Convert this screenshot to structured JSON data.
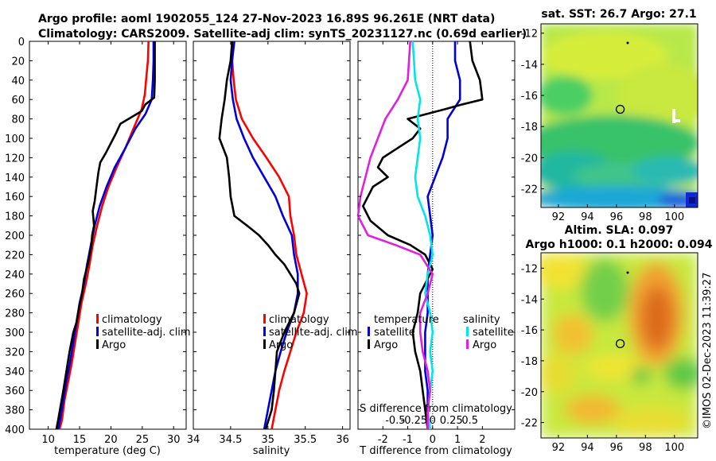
{
  "header": {
    "title_line1": "Argo profile: aoml 1902055_124 27-Nov-2023 16.89S 96.261E (NRT data)",
    "title_line2": "Climatology: CARS2009. Satellite-adj clim: synTS_20231127.nc (0.69d earlier)"
  },
  "footer": {
    "credit": "©IMOS 02-Dec-2023 11:39:27"
  },
  "colors": {
    "climatology": "#ff0000",
    "satellite": "#0000dd",
    "argo": "#000000",
    "sal_satellite": "#00e5e5",
    "sal_argo": "#e020e0"
  },
  "chart_data": [
    {
      "id": "temperature",
      "type": "line",
      "xlabel": "temperature (deg C)",
      "ylabel": "",
      "xlim": [
        7,
        32
      ],
      "ylim": [
        400,
        0
      ],
      "xticks": [
        10,
        15,
        20,
        25,
        30
      ],
      "yticks": [
        0,
        20,
        40,
        60,
        80,
        100,
        120,
        140,
        160,
        180,
        200,
        220,
        240,
        260,
        280,
        300,
        320,
        340,
        360,
        380,
        400
      ],
      "legend": [
        "climatology",
        "satellite-adj. clim",
        "Argo"
      ],
      "series": [
        {
          "name": "climatology",
          "color": "#ff0000",
          "points": [
            [
              26.0,
              0
            ],
            [
              25.9,
              20
            ],
            [
              25.6,
              40
            ],
            [
              25.4,
              55
            ],
            [
              24.9,
              70
            ],
            [
              23.6,
              90
            ],
            [
              22.3,
              110
            ],
            [
              20.9,
              130
            ],
            [
              19.6,
              150
            ],
            [
              18.6,
              170
            ],
            [
              17.8,
              190
            ],
            [
              17.1,
              210
            ],
            [
              16.6,
              230
            ],
            [
              16.0,
              250
            ],
            [
              15.3,
              270
            ],
            [
              14.8,
              290
            ],
            [
              14.3,
              310
            ],
            [
              13.8,
              330
            ],
            [
              13.2,
              350
            ],
            [
              12.6,
              370
            ],
            [
              12.2,
              390
            ],
            [
              11.8,
              400
            ]
          ]
        },
        {
          "name": "satellite-adj. clim",
          "color": "#0000dd",
          "points": [
            [
              26.8,
              0
            ],
            [
              26.8,
              20
            ],
            [
              26.7,
              40
            ],
            [
              26.5,
              60
            ],
            [
              25.5,
              75
            ],
            [
              23.9,
              90
            ],
            [
              22.3,
              110
            ],
            [
              20.6,
              130
            ],
            [
              19.3,
              150
            ],
            [
              18.2,
              170
            ],
            [
              17.4,
              190
            ],
            [
              16.8,
              210
            ],
            [
              16.2,
              230
            ],
            [
              15.7,
              250
            ],
            [
              15.0,
              270
            ],
            [
              14.5,
              290
            ],
            [
              14.0,
              310
            ],
            [
              13.5,
              330
            ],
            [
              12.9,
              350
            ],
            [
              12.4,
              370
            ],
            [
              11.9,
              390
            ],
            [
              11.6,
              400
            ]
          ]
        },
        {
          "name": "Argo",
          "color": "#000000",
          "points": [
            [
              27.0,
              0
            ],
            [
              27.0,
              20
            ],
            [
              27.0,
              40
            ],
            [
              26.9,
              58
            ],
            [
              25.5,
              65
            ],
            [
              24.9,
              72
            ],
            [
              21.5,
              85
            ],
            [
              20.8,
              95
            ],
            [
              20.0,
              105
            ],
            [
              19.2,
              115
            ],
            [
              18.3,
              125
            ],
            [
              18.0,
              135
            ],
            [
              17.7,
              150
            ],
            [
              17.4,
              165
            ],
            [
              17.1,
              175
            ],
            [
              17.3,
              190
            ],
            [
              17.0,
              200
            ],
            [
              16.9,
              210
            ],
            [
              16.3,
              230
            ],
            [
              15.7,
              245
            ],
            [
              15.4,
              260
            ],
            [
              14.9,
              275
            ],
            [
              14.5,
              290
            ],
            [
              14.0,
              300
            ],
            [
              13.4,
              320
            ],
            [
              12.9,
              340
            ],
            [
              12.4,
              360
            ],
            [
              12.0,
              375
            ],
            [
              11.6,
              390
            ],
            [
              11.3,
              400
            ]
          ]
        }
      ]
    },
    {
      "id": "salinity",
      "type": "line",
      "xlabel": "salinity",
      "ylabel": "",
      "xlim": [
        34.0,
        36.1
      ],
      "ylim": [
        400,
        0
      ],
      "xticks": [
        34,
        34.5,
        35,
        35.5,
        36
      ],
      "legend": [
        "climatology",
        "satellite-adj. clim",
        "Argo"
      ],
      "series": [
        {
          "name": "climatology",
          "color": "#ff0000",
          "points": [
            [
              34.52,
              0
            ],
            [
              34.52,
              20
            ],
            [
              34.54,
              40
            ],
            [
              34.57,
              60
            ],
            [
              34.65,
              80
            ],
            [
              34.8,
              100
            ],
            [
              34.98,
              120
            ],
            [
              35.15,
              140
            ],
            [
              35.28,
              160
            ],
            [
              35.3,
              180
            ],
            [
              35.35,
              200
            ],
            [
              35.38,
              220
            ],
            [
              35.45,
              240
            ],
            [
              35.52,
              260
            ],
            [
              35.48,
              280
            ],
            [
              35.38,
              300
            ],
            [
              35.3,
              320
            ],
            [
              35.22,
              340
            ],
            [
              35.15,
              360
            ],
            [
              35.1,
              380
            ],
            [
              35.05,
              400
            ]
          ]
        },
        {
          "name": "satellite-adj. clim",
          "color": "#0000dd",
          "points": [
            [
              34.55,
              0
            ],
            [
              34.52,
              20
            ],
            [
              34.5,
              40
            ],
            [
              34.53,
              60
            ],
            [
              34.58,
              80
            ],
            [
              34.68,
              100
            ],
            [
              34.8,
              120
            ],
            [
              34.95,
              140
            ],
            [
              35.1,
              160
            ],
            [
              35.2,
              180
            ],
            [
              35.32,
              200
            ],
            [
              35.35,
              220
            ],
            [
              35.4,
              240
            ],
            [
              35.4,
              260
            ],
            [
              35.35,
              280
            ],
            [
              35.25,
              300
            ],
            [
              35.17,
              320
            ],
            [
              35.1,
              340
            ],
            [
              35.05,
              360
            ],
            [
              35.0,
              380
            ],
            [
              34.95,
              400
            ]
          ]
        },
        {
          "name": "Argo",
          "color": "#000000",
          "points": [
            [
              34.52,
              0
            ],
            [
              34.5,
              20
            ],
            [
              34.45,
              40
            ],
            [
              34.42,
              60
            ],
            [
              34.38,
              80
            ],
            [
              34.35,
              100
            ],
            [
              34.45,
              120
            ],
            [
              34.48,
              140
            ],
            [
              34.5,
              160
            ],
            [
              34.55,
              180
            ],
            [
              34.72,
              190
            ],
            [
              34.88,
              200
            ],
            [
              35.0,
              210
            ],
            [
              35.1,
              220
            ],
            [
              35.22,
              230
            ],
            [
              35.3,
              240
            ],
            [
              35.38,
              250
            ],
            [
              35.42,
              260
            ],
            [
              35.35,
              280
            ],
            [
              35.22,
              300
            ],
            [
              35.12,
              320
            ],
            [
              35.1,
              340
            ],
            [
              35.08,
              360
            ],
            [
              35.05,
              380
            ],
            [
              34.97,
              400
            ]
          ]
        }
      ]
    },
    {
      "id": "differences",
      "type": "line",
      "xlabel": "T difference from climatology",
      "top_xlabel": "S difference from climatology",
      "xlim": [
        -3,
        3.3
      ],
      "ylim": [
        400,
        0
      ],
      "xticks": [
        -2,
        -1,
        0,
        1,
        2
      ],
      "s_ticks": [
        "-0.5",
        "-0.25",
        "0",
        "0.25",
        "0.5"
      ],
      "legend_headers": [
        "temperature",
        "salinity"
      ],
      "legend": [
        "satellite",
        "Argo",
        "satellite",
        "Argo"
      ],
      "series": [
        {
          "name": "T satellite",
          "color": "#0000dd",
          "points": [
            [
              0.9,
              0
            ],
            [
              0.9,
              20
            ],
            [
              1.1,
              40
            ],
            [
              1.1,
              60
            ],
            [
              0.6,
              80
            ],
            [
              0.6,
              100
            ],
            [
              0.4,
              120
            ],
            [
              0.1,
              140
            ],
            [
              -0.2,
              160
            ],
            [
              -0.1,
              180
            ],
            [
              0.0,
              200
            ],
            [
              -0.1,
              220
            ],
            [
              -0.2,
              240
            ],
            [
              -0.2,
              260
            ],
            [
              -0.2,
              280
            ],
            [
              -0.3,
              300
            ],
            [
              -0.3,
              320
            ],
            [
              -0.3,
              340
            ],
            [
              -0.2,
              360
            ],
            [
              -0.2,
              380
            ],
            [
              -0.2,
              400
            ]
          ]
        },
        {
          "name": "T Argo",
          "color": "#000000",
          "points": [
            [
              1.5,
              0
            ],
            [
              1.6,
              20
            ],
            [
              1.9,
              40
            ],
            [
              2.0,
              60
            ],
            [
              1.2,
              65
            ],
            [
              0.5,
              70
            ],
            [
              -1.0,
              80
            ],
            [
              -0.5,
              90
            ],
            [
              -0.8,
              100
            ],
            [
              -1.4,
              110
            ],
            [
              -2.0,
              120
            ],
            [
              -2.2,
              130
            ],
            [
              -1.8,
              140
            ],
            [
              -2.4,
              150
            ],
            [
              -2.8,
              170
            ],
            [
              -2.5,
              185
            ],
            [
              -1.8,
              200
            ],
            [
              -0.9,
              210
            ],
            [
              -0.3,
              220
            ],
            [
              0.0,
              235
            ],
            [
              -0.5,
              260
            ],
            [
              -0.6,
              280
            ],
            [
              -0.8,
              300
            ],
            [
              -0.7,
              320
            ],
            [
              -0.5,
              340
            ],
            [
              -0.4,
              360
            ],
            [
              -0.3,
              380
            ],
            [
              -0.2,
              400
            ]
          ]
        },
        {
          "name": "S satellite",
          "color": "#00e5e5",
          "points": [
            [
              -0.8,
              0
            ],
            [
              -0.7,
              40
            ],
            [
              -0.5,
              60
            ],
            [
              -0.6,
              80
            ],
            [
              -0.5,
              100
            ],
            [
              -0.6,
              120
            ],
            [
              -0.7,
              140
            ],
            [
              -0.6,
              160
            ],
            [
              -0.3,
              180
            ],
            [
              -0.1,
              200
            ],
            [
              0.0,
              220
            ],
            [
              -0.2,
              240
            ],
            [
              -0.3,
              260
            ],
            [
              -0.1,
              280
            ],
            [
              0.0,
              300
            ],
            [
              -0.1,
              320
            ],
            [
              0.0,
              340
            ],
            [
              -0.1,
              360
            ],
            [
              -0.2,
              380
            ],
            [
              -0.1,
              400
            ]
          ]
        },
        {
          "name": "S Argo",
          "color": "#e020e0",
          "points": [
            [
              -0.9,
              0
            ],
            [
              -1.0,
              40
            ],
            [
              -1.4,
              60
            ],
            [
              -1.9,
              80
            ],
            [
              -2.2,
              100
            ],
            [
              -2.5,
              120
            ],
            [
              -2.7,
              140
            ],
            [
              -2.9,
              160
            ],
            [
              -3.0,
              180
            ],
            [
              -2.6,
              200
            ],
            [
              -1.5,
              210
            ],
            [
              -0.5,
              220
            ],
            [
              0.0,
              240
            ],
            [
              -0.2,
              260
            ],
            [
              -0.5,
              280
            ],
            [
              -0.5,
              300
            ],
            [
              -0.4,
              320
            ],
            [
              -0.2,
              340
            ],
            [
              -0.1,
              360
            ],
            [
              -0.2,
              380
            ],
            [
              -0.2,
              400
            ]
          ]
        }
      ]
    },
    {
      "id": "sst_map",
      "type": "heatmap",
      "title": "sat. SST: 26.7 Argo: 27.1",
      "xticks": [
        92,
        94,
        96,
        98,
        100
      ],
      "yticks": [
        -12,
        -14,
        -16,
        -18,
        -20,
        -22
      ],
      "xlim": [
        90.8,
        101.6
      ],
      "ylim": [
        -23.2,
        -11.4
      ],
      "profile_location": [
        96.26,
        -16.89
      ]
    },
    {
      "id": "sla_map",
      "type": "heatmap",
      "title_line1": "Altim. SLA: 0.097",
      "title_line2": "Argo h1000: 0.1 h2000: 0.094",
      "xticks": [
        92,
        94,
        96,
        98,
        100
      ],
      "yticks": [
        -12,
        -14,
        -16,
        -18,
        -20,
        -22
      ],
      "xlim": [
        90.8,
        101.6
      ],
      "ylim": [
        -23.0,
        -11.0
      ],
      "profile_location": [
        96.26,
        -16.89
      ]
    }
  ]
}
